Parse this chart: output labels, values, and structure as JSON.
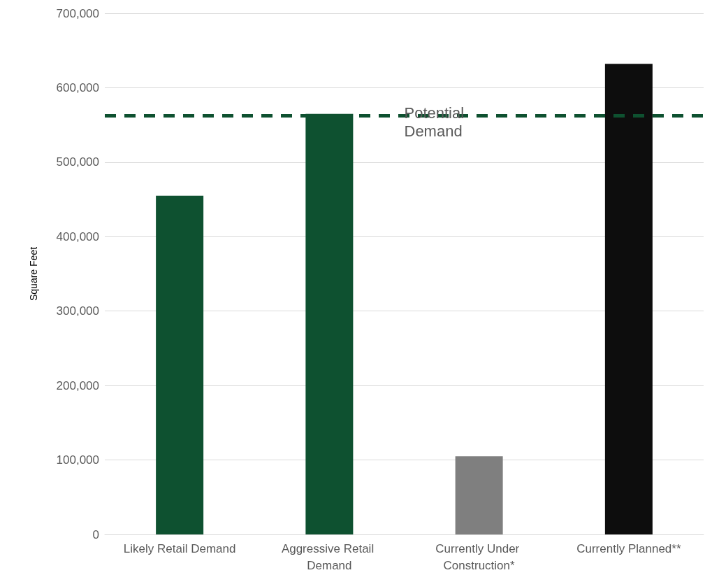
{
  "chart_data": {
    "type": "bar",
    "ylabel": "Square Feet",
    "categories": [
      "Likely Retail Demand",
      "Aggressive Retail Demand",
      "Currently Under Construction*",
      "Currently Planned**"
    ],
    "values": [
      455000,
      565000,
      105000,
      632000
    ],
    "colors": [
      "#0e5130",
      "#0e5130",
      "#7f7f7f",
      "#0d0d0d"
    ],
    "ylim": [
      0,
      700000
    ],
    "yticks": [
      0,
      {
        "value": 100000,
        "label": "100,000"
      },
      {
        "value": 200000,
        "label": "200,000"
      },
      {
        "value": 300000,
        "label": "300,000"
      },
      {
        "value": 400000,
        "label": "400,000"
      },
      {
        "value": 500000,
        "label": "500,000"
      },
      {
        "value": 600000,
        "label": "600,000"
      },
      {
        "value": 700000,
        "label": "700,000"
      }
    ],
    "ref_lines": [
      {
        "axis": "y",
        "value": 563000,
        "label": "Potential Demand",
        "color": "#0e5130",
        "line_style": "dashed"
      }
    ],
    "grid": "y"
  }
}
